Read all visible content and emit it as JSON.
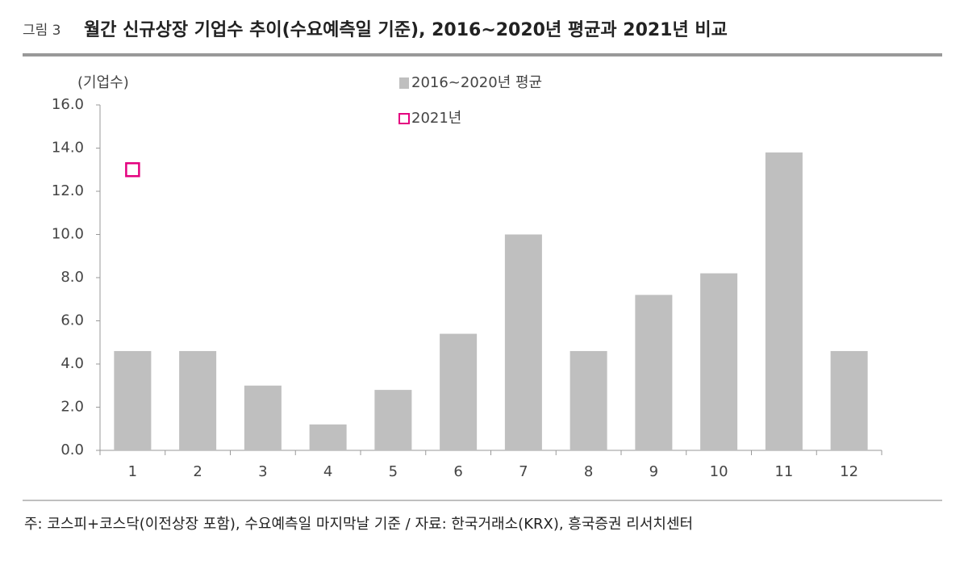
{
  "chart_data": {
    "type": "bar",
    "figure_label": "그림 3",
    "title": "월간 신규상장 기업수 추이(수요예측일 기준), 2016~2020년 평균과 2021년 비교",
    "y_label": "(기업수)",
    "note": "주: 코스피+코스닥(이전상장 포함), 수요예측일 마지막날 기준 / 자료: 한국거래소(KRX), 흥국증권 리서치센터",
    "categories": [
      "1",
      "2",
      "3",
      "4",
      "5",
      "6",
      "7",
      "8",
      "9",
      "10",
      "11",
      "12"
    ],
    "series": [
      {
        "name": "2016~2020년 평균",
        "color": "#bfbfbf",
        "style": "bar",
        "values": [
          4.6,
          4.6,
          3.0,
          1.2,
          2.8,
          5.4,
          10.0,
          4.6,
          7.2,
          8.2,
          13.8,
          4.6
        ]
      },
      {
        "name": "2021년",
        "color": "#e4007f",
        "style": "hollow-square",
        "values": [
          13,
          null,
          null,
          null,
          null,
          null,
          null,
          null,
          null,
          null,
          null,
          null
        ]
      }
    ],
    "ylim": [
      0,
      16
    ],
    "yticks": [
      {
        "value": 0,
        "label": "0.0"
      },
      {
        "value": 2,
        "label": "2.0"
      },
      {
        "value": 4,
        "label": "4.0"
      },
      {
        "value": 6,
        "label": "6.0"
      },
      {
        "value": 8,
        "label": "8.0"
      },
      {
        "value": 10,
        "label": "10.0"
      },
      {
        "value": 12,
        "label": "12.0"
      },
      {
        "value": 14,
        "label": "14.0"
      },
      {
        "value": 16,
        "label": "16.0"
      }
    ],
    "grid": false
  }
}
